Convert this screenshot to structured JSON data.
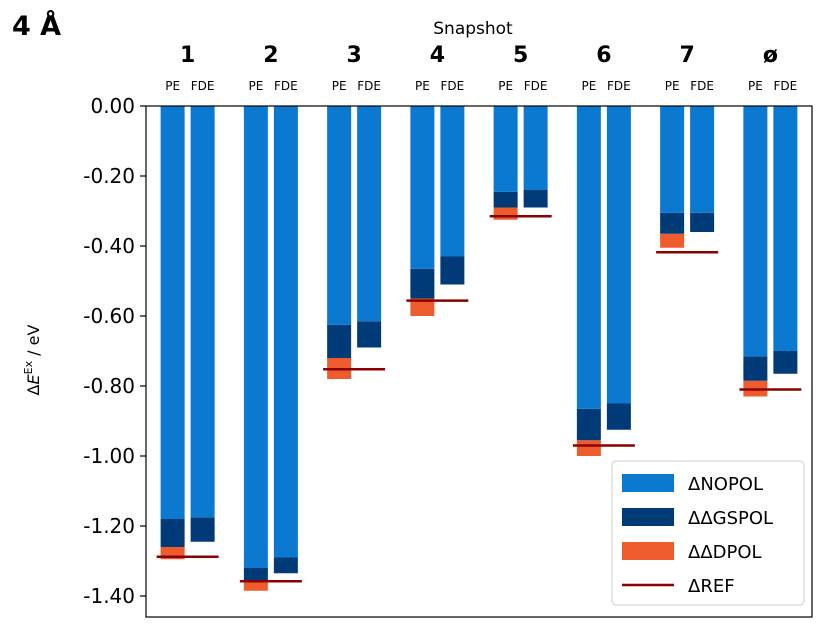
{
  "chart_data": {
    "type": "bar",
    "panel_label": "4 Å",
    "title": "Snapshot",
    "ylabel_prefix": "Δ",
    "ylabel_main": "E",
    "ylabel_sup": "Ex",
    "ylabel_unit": " / eV",
    "ylim": [
      -1.46,
      0.0
    ],
    "yticks": [
      0.0,
      -0.2,
      -0.4,
      -0.6,
      -0.8,
      -1.0,
      -1.2,
      -1.4
    ],
    "ytick_labels": [
      "0.00",
      "-0.20",
      "-0.40",
      "-0.60",
      "-0.80",
      "-1.00",
      "-1.20",
      "-1.40"
    ],
    "methods": [
      "PE",
      "FDE"
    ],
    "colors": {
      "nopol": "#0a79cf",
      "gspol": "#003b78",
      "dpol": "#ee5c2e",
      "ref": "#8b0000"
    },
    "legend": {
      "position": "lower-right",
      "entries": [
        "ΔNOPOL",
        "ΔΔGSPOL",
        "ΔΔDPOL",
        "ΔREF"
      ]
    },
    "snapshots": [
      {
        "label": "1",
        "bars": [
          {
            "method": "PE",
            "nopol": -1.18,
            "gspol": -1.26,
            "dpol": -1.295
          },
          {
            "method": "FDE",
            "nopol": -1.175,
            "gspol": -1.245,
            "dpol": null
          }
        ],
        "ref": -1.288
      },
      {
        "label": "2",
        "bars": [
          {
            "method": "PE",
            "nopol": -1.32,
            "gspol": -1.355,
            "dpol": -1.385
          },
          {
            "method": "FDE",
            "nopol": -1.29,
            "gspol": -1.335,
            "dpol": null
          }
        ],
        "ref": -1.358
      },
      {
        "label": "3",
        "bars": [
          {
            "method": "PE",
            "nopol": -0.625,
            "gspol": -0.72,
            "dpol": -0.78
          },
          {
            "method": "FDE",
            "nopol": -0.615,
            "gspol": -0.69,
            "dpol": null
          }
        ],
        "ref": -0.752
      },
      {
        "label": "4",
        "bars": [
          {
            "method": "PE",
            "nopol": -0.465,
            "gspol": -0.55,
            "dpol": -0.6
          },
          {
            "method": "FDE",
            "nopol": -0.43,
            "gspol": -0.51,
            "dpol": null
          }
        ],
        "ref": -0.556
      },
      {
        "label": "5",
        "bars": [
          {
            "method": "PE",
            "nopol": -0.245,
            "gspol": -0.29,
            "dpol": -0.325
          },
          {
            "method": "FDE",
            "nopol": -0.24,
            "gspol": -0.29,
            "dpol": null
          }
        ],
        "ref": -0.315
      },
      {
        "label": "6",
        "bars": [
          {
            "method": "PE",
            "nopol": -0.865,
            "gspol": -0.955,
            "dpol": -1.0
          },
          {
            "method": "FDE",
            "nopol": -0.85,
            "gspol": -0.925,
            "dpol": null
          }
        ],
        "ref": -0.97
      },
      {
        "label": "7",
        "bars": [
          {
            "method": "PE",
            "nopol": -0.305,
            "gspol": -0.365,
            "dpol": -0.405
          },
          {
            "method": "FDE",
            "nopol": -0.305,
            "gspol": -0.36,
            "dpol": null
          }
        ],
        "ref": -0.418
      },
      {
        "label": "ø",
        "bars": [
          {
            "method": "PE",
            "nopol": -0.715,
            "gspol": -0.785,
            "dpol": -0.83
          },
          {
            "method": "FDE",
            "nopol": -0.7,
            "gspol": -0.765,
            "dpol": null
          }
        ],
        "ref": -0.81
      }
    ]
  }
}
